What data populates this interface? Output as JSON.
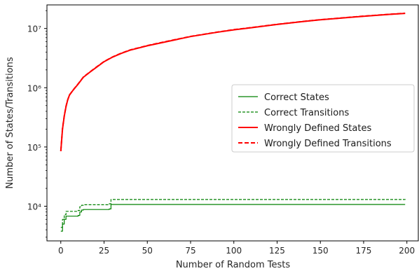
{
  "chart_data": {
    "type": "line",
    "xlabel": "Number of Random Tests",
    "ylabel": "Number of States/Transitions",
    "y_scale": "log",
    "xlim": [
      -8,
      207
    ],
    "ylim": [
      2600,
      25000000
    ],
    "x_ticks": [
      0,
      25,
      50,
      75,
      100,
      125,
      150,
      175,
      200
    ],
    "x_tick_labels": [
      "0",
      "25",
      "50",
      "75",
      "100",
      "125",
      "150",
      "175",
      "200"
    ],
    "y_ticks": [
      10000,
      100000,
      1000000,
      10000000
    ],
    "y_tick_labels": [
      "10⁴",
      "10⁵",
      "10⁶",
      "10⁷"
    ],
    "grid": false,
    "legend_position": "center-right",
    "series": [
      {
        "name": "Correct States",
        "color": "#008000",
        "line_style": "solid",
        "x": [
          0,
          1,
          2,
          3,
          10,
          11,
          12,
          13,
          28,
          29,
          199
        ],
        "y": [
          3800,
          5000,
          6000,
          6800,
          7000,
          8000,
          8600,
          8800,
          9000,
          10700,
          10700
        ]
      },
      {
        "name": "Correct Transitions",
        "color": "#008000",
        "line_style": "dashed",
        "x": [
          0,
          1,
          2,
          3,
          10,
          11,
          12,
          13,
          28,
          29,
          199
        ],
        "y": [
          4400,
          6000,
          7200,
          8200,
          8500,
          9800,
          10400,
          10600,
          11000,
          13000,
          13200
        ]
      },
      {
        "name": "Wrongly Defined States",
        "color": "#ff0000",
        "line_style": "solid",
        "x": [
          0,
          1,
          2,
          3,
          4,
          5,
          7,
          10,
          13,
          17,
          20,
          25,
          30,
          35,
          40,
          50,
          60,
          75,
          90,
          100,
          110,
          125,
          140,
          150,
          160,
          175,
          190,
          199
        ],
        "y": [
          85000,
          200000,
          330000,
          480000,
          620000,
          750000,
          900000,
          1150000,
          1500000,
          1850000,
          2150000,
          2750000,
          3300000,
          3800000,
          4300000,
          5100000,
          5900000,
          7300000,
          8600000,
          9500000,
          10300000,
          11700000,
          13100000,
          14000000,
          14800000,
          16100000,
          17300000,
          18000000
        ]
      },
      {
        "name": "Wrongly Defined Transitions",
        "color": "#ff0000",
        "line_style": "dashed",
        "x": [
          0,
          1,
          2,
          3,
          4,
          5,
          7,
          10,
          13,
          17,
          20,
          25,
          30,
          35,
          40,
          50,
          60,
          75,
          90,
          100,
          110,
          125,
          140,
          150,
          160,
          175,
          190,
          199
        ],
        "y": [
          86000,
          205000,
          335000,
          485000,
          625000,
          755000,
          905000,
          1160000,
          1510000,
          1860000,
          2170000,
          2770000,
          3320000,
          3830000,
          4330000,
          5140000,
          5950000,
          7350000,
          8660000,
          9560000,
          10360000,
          11760000,
          13160000,
          14060000,
          14860000,
          16160000,
          17360000,
          18060000
        ]
      }
    ]
  }
}
